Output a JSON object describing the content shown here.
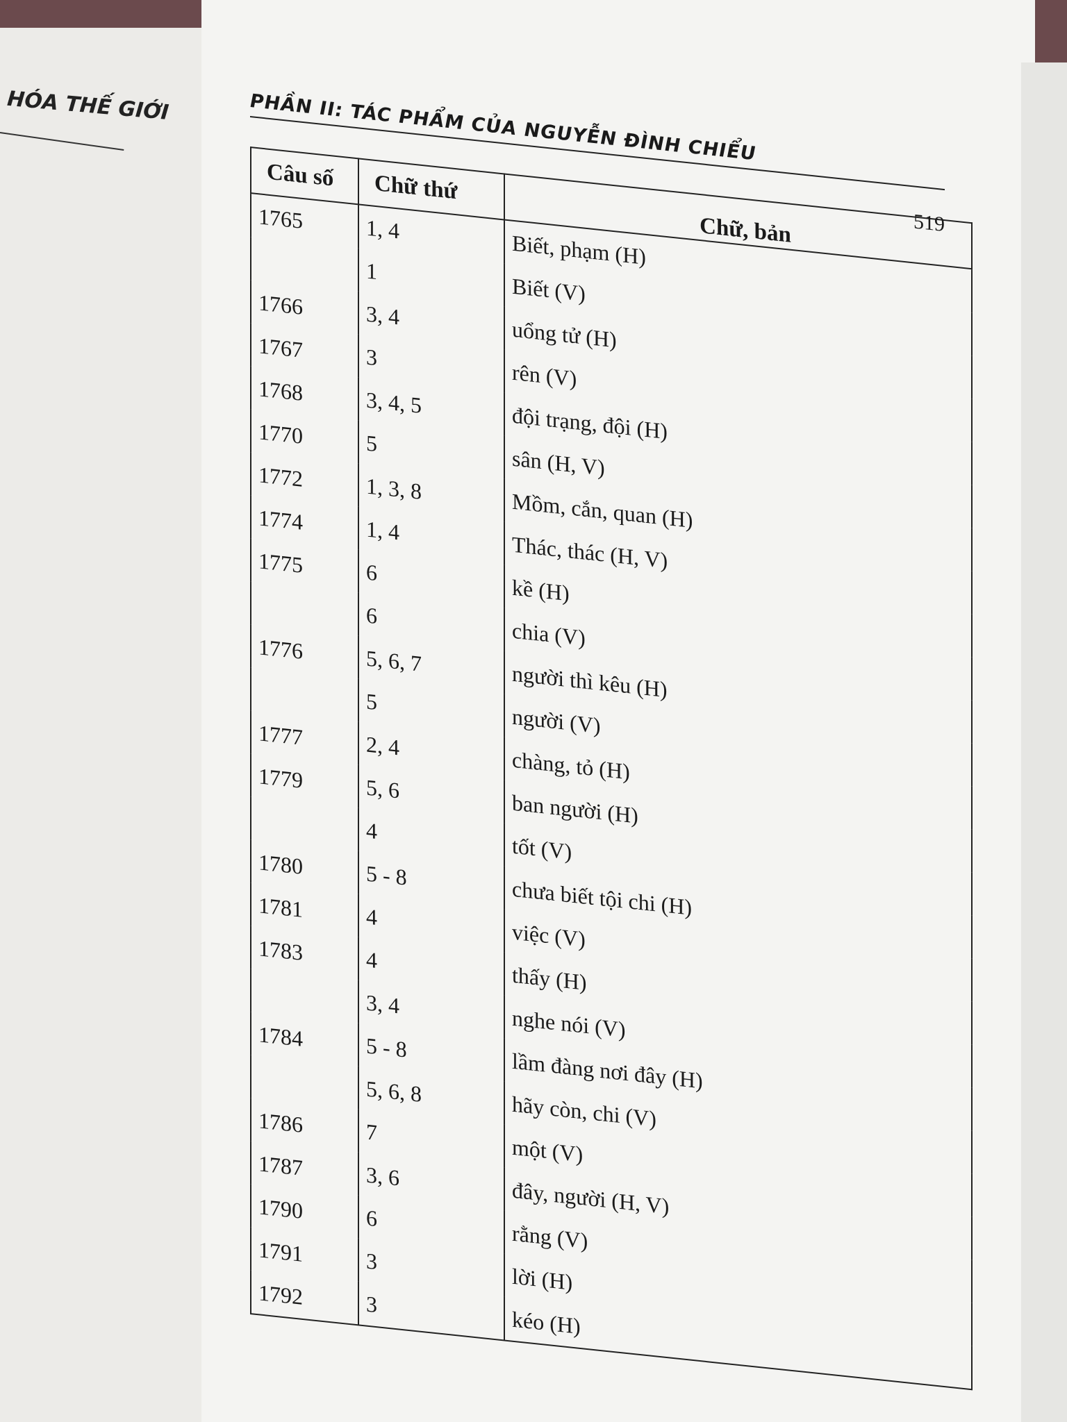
{
  "left_page": {
    "header": "HÓA THẾ GIỚI"
  },
  "header": {
    "title": "PHẦN II: TÁC PHẨM CỦA NGUYỄN ĐÌNH CHIỂU",
    "page_number": "519"
  },
  "table": {
    "columns": [
      "Câu số",
      "Chữ thứ",
      "Chữ, bản"
    ],
    "rows": [
      [
        "1765",
        "1, 4",
        "Biết, phạm (H)"
      ],
      [
        null,
        "1",
        "Biết (V)"
      ],
      [
        "1766",
        "3, 4",
        "uổng tử (H)"
      ],
      [
        "1767",
        "3",
        "rên (V)"
      ],
      [
        "1768",
        "3, 4, 5",
        "đội trạng, đội (H)"
      ],
      [
        "1770",
        "5",
        "sân (H, V)"
      ],
      [
        "1772",
        "1, 3, 8",
        "Mồm, cắn, quan (H)"
      ],
      [
        "1774",
        "1, 4",
        "Thác, thác (H, V)"
      ],
      [
        "1775",
        "6",
        "kề (H)"
      ],
      [
        null,
        "6",
        "chia (V)"
      ],
      [
        "1776",
        "5, 6, 7",
        "người thì kêu (H)"
      ],
      [
        null,
        "5",
        "người (V)"
      ],
      [
        "1777",
        "2, 4",
        "chàng, tỏ (H)"
      ],
      [
        "1779",
        "5, 6",
        "ban người (H)"
      ],
      [
        null,
        "4",
        "tốt (V)"
      ],
      [
        "1780",
        "5 - 8",
        "chưa biết tội chi (H)"
      ],
      [
        "1781",
        "4",
        "việc (V)"
      ],
      [
        "1783",
        "4",
        "thấy (H)"
      ],
      [
        null,
        "3, 4",
        "nghe nói (V)"
      ],
      [
        "1784",
        "5 - 8",
        "lầm đàng nơi đây (H)"
      ],
      [
        null,
        "5, 6, 8",
        "hãy còn, chi (V)"
      ],
      [
        "1786",
        "7",
        "một (V)"
      ],
      [
        "1787",
        "3, 6",
        "đây, người (H, V)"
      ],
      [
        "1790",
        "6",
        "rằng (V)"
      ],
      [
        "1791",
        "3",
        "lời (H)"
      ],
      [
        "1792",
        "3",
        "kéo (H)"
      ]
    ]
  }
}
